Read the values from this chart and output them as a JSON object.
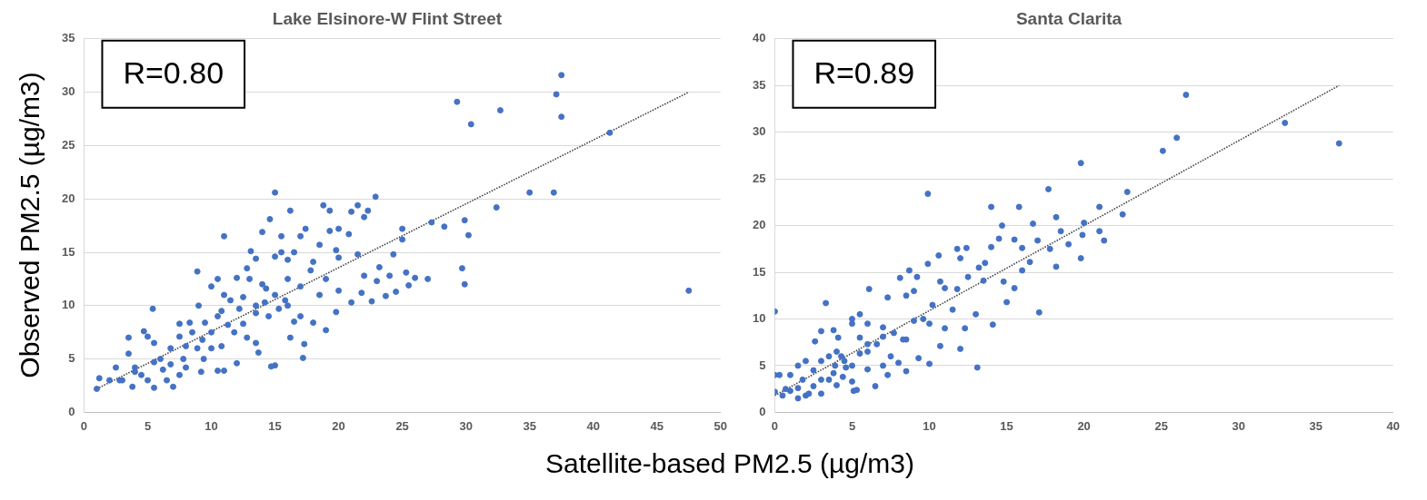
{
  "chart_data": [
    {
      "type": "scatter",
      "title": "Lake Elsinore-W Flint Street",
      "ylabel": "Observed PM2.5 (µg/m3)",
      "annotations": [
        "R=0.80"
      ],
      "xlim": [
        0,
        50
      ],
      "xticks": [
        0,
        5,
        10,
        15,
        20,
        25,
        30,
        35,
        40,
        45,
        50
      ],
      "ylim": [
        0,
        35
      ],
      "yticks": [
        0,
        5,
        10,
        15,
        20,
        25,
        30,
        35
      ],
      "grid": "y",
      "legend": false,
      "marker": "circle",
      "series": [
        {
          "color": "#4472c4",
          "x": [
            29.3,
            30.4,
            32.7,
            37.1,
            37.5,
            37.5,
            41.3,
            35,
            36.9,
            32.4,
            29.9,
            30.2,
            29.7,
            29.9,
            47.5,
            27.3,
            28.3,
            27,
            25,
            25,
            25.3,
            26,
            25.5,
            24.5,
            23.7,
            24.3,
            22.9,
            21.5,
            21,
            22,
            22.3,
            20.8,
            21.5,
            22.6,
            21.8,
            23.2,
            23,
            18.8,
            19.3,
            17.4,
            16.2,
            15,
            14.6,
            14,
            13.1,
            11,
            8.9,
            5.4,
            15.5,
            16.5,
            18.5,
            19.8,
            20,
            17.8,
            19,
            20,
            18.5,
            17,
            16,
            15,
            14.3,
            13,
            12,
            11,
            10,
            9,
            9.5,
            10.8,
            12.2,
            13.5,
            14.5,
            15.8,
            16.5,
            16.2,
            17.3,
            17.2,
            15,
            14.7,
            13.7,
            12.8,
            11.8,
            10.8,
            10.5,
            11,
            12,
            9.4,
            8.9,
            8,
            7.5,
            6.8,
            6,
            6.8,
            7.5,
            7,
            6.5,
            5.5,
            5,
            4.5,
            4,
            3.8,
            3,
            2.5,
            2,
            1.2,
            1,
            3.5,
            3.5,
            4.7,
            5,
            5.5,
            6.2,
            7.8,
            8.3,
            7.5,
            8.5,
            9.3,
            10,
            10.5,
            11.5,
            12.5,
            13.5,
            14.2,
            15,
            16,
            17,
            18,
            19,
            19.8,
            21,
            15.3,
            12.5,
            10,
            8,
            9.2,
            4,
            5.5,
            2.8,
            13.5,
            11.3,
            14,
            17,
            13.5,
            12.8,
            10.5,
            16,
            18,
            20,
            15.5,
            19.3,
            22,
            24
          ],
          "values": [
            29.1,
            27,
            28.3,
            29.8,
            31.6,
            27.7,
            26.2,
            20.6,
            20.6,
            19.2,
            18,
            16.6,
            13.5,
            12,
            11.4,
            17.8,
            17.4,
            12.5,
            17.2,
            16.2,
            13.1,
            12.6,
            11.9,
            11.3,
            10.9,
            14.8,
            20.2,
            19.4,
            18.8,
            18.3,
            18.9,
            16.7,
            14.8,
            10.4,
            11.2,
            13.6,
            12.3,
            19.4,
            18.9,
            17.2,
            18.9,
            20.6,
            18.1,
            16.9,
            15.1,
            16.5,
            13.2,
            9.7,
            15,
            15,
            15.7,
            15.2,
            14.5,
            13.3,
            12.5,
            11.4,
            11,
            11.8,
            12.5,
            14.6,
            11.6,
            12.5,
            12.6,
            11,
            11.8,
            10,
            8.4,
            9.5,
            9.7,
            10,
            9,
            10.5,
            8.5,
            7,
            6.4,
            5.1,
            4.4,
            4.3,
            5.6,
            7,
            7.5,
            6.2,
            3.9,
            3.9,
            4.6,
            5,
            6,
            6.2,
            7.1,
            6,
            5,
            4.5,
            3.5,
            2.4,
            3,
            2.3,
            3,
            3.5,
            4.2,
            2.4,
            3,
            4.2,
            3,
            3.2,
            2.2,
            7,
            5.5,
            7.6,
            7.1,
            6.5,
            4,
            5,
            8.4,
            8.3,
            7.5,
            6.8,
            7.5,
            9,
            10.5,
            10.8,
            9.3,
            10.3,
            11,
            10,
            9,
            8.4,
            7.7,
            9.4,
            10.3,
            9.7,
            8.3,
            6,
            4.2,
            3.8,
            3.8,
            4.7,
            3,
            6.5,
            8.2,
            12,
            16.5,
            14.4,
            13.5,
            12.5,
            14.3,
            14.1,
            17.2,
            16.5,
            17,
            12.8,
            12.8
          ]
        },
        {
          "type": "line",
          "color": "#404040",
          "line_style": "dotted",
          "marker": "none",
          "x": [
            1,
            47.5
          ],
          "values": [
            2.2,
            30
          ]
        }
      ]
    },
    {
      "type": "scatter",
      "title": "Santa Clarita",
      "xlabel": "Satellite-based PM2.5 (µg/m3)",
      "annotations": [
        "R=0.89"
      ],
      "xlim": [
        0,
        40
      ],
      "xticks": [
        0,
        5,
        10,
        15,
        20,
        25,
        30,
        35,
        40
      ],
      "ylim": [
        0,
        40
      ],
      "yticks": [
        0,
        5,
        10,
        15,
        20,
        25,
        30,
        35,
        40
      ],
      "grid": "y",
      "legend": false,
      "marker": "circle",
      "series": [
        {
          "color": "#4472c4",
          "x": [
            0,
            3.3,
            9.9,
            13.1,
            19.8,
            17.7,
            14,
            15.8,
            14.7,
            16.7,
            18.2,
            20,
            21,
            22.8,
            22.5,
            21,
            21.3,
            19.9,
            19,
            19.8,
            18.2,
            17.8,
            17,
            16,
            15.5,
            14.5,
            14,
            13.6,
            13.2,
            12.4,
            11.8,
            12,
            10.6,
            9.9,
            8.7,
            8.1,
            7.3,
            6.1,
            5.5,
            5,
            4.1,
            3,
            2.6,
            3.8,
            5,
            6,
            7,
            8.5,
            9,
            10.2,
            11,
            11.8,
            12.5,
            13.5,
            14.8,
            15.5,
            16,
            16.5,
            17.1,
            15,
            14.1,
            13,
            12.3,
            11.5,
            11,
            12,
            10.7,
            10,
            9.3,
            8.5,
            8,
            7.3,
            6.5,
            6,
            5.3,
            5,
            4.4,
            4,
            3.5,
            3,
            2.5,
            2,
            1.5,
            1,
            0.5,
            0,
            0,
            0.3,
            1,
            1.5,
            2,
            2.5,
            3,
            3.5,
            4,
            4.5,
            5,
            5.5,
            6,
            6.6,
            7,
            7.7,
            8.3,
            9,
            9.6,
            10,
            8.5,
            7.5,
            7,
            6,
            5.5,
            4.6,
            3.8,
            3,
            1.5,
            2.2,
            4.3,
            5.1,
            3.9,
            1.8,
            0.7,
            25.1,
            26,
            26.6,
            33,
            36.5,
            18.5,
            10.7,
            9.2
          ],
          "values": [
            10.8,
            11.7,
            23.4,
            4.8,
            26.7,
            23.9,
            22,
            22,
            20,
            20.2,
            20.9,
            20.3,
            22,
            23.6,
            21.2,
            19.4,
            18.4,
            19,
            18,
            16.5,
            15.6,
            17.5,
            18.4,
            17.6,
            18.5,
            18.6,
            17.7,
            16,
            15.5,
            17.6,
            17.5,
            16.5,
            16.8,
            15.9,
            15.2,
            14.4,
            12.3,
            13.2,
            10.5,
            10,
            8,
            8.7,
            7.6,
            8.8,
            9.5,
            9.5,
            9.1,
            12.5,
            13,
            11.5,
            13.3,
            13.2,
            14.5,
            14.1,
            14,
            13.3,
            15.2,
            16.1,
            10.7,
            11.8,
            9.4,
            10.5,
            9,
            11,
            9,
            6.8,
            7.1,
            5.2,
            5.8,
            4.4,
            5.3,
            4,
            2.8,
            4.6,
            2.4,
            3.3,
            3.8,
            2.9,
            3.5,
            2,
            2.8,
            1.8,
            1.5,
            2.3,
            1.8,
            2.2,
            4,
            4,
            4,
            5,
            5.5,
            4.5,
            5.5,
            6,
            6.5,
            5.5,
            5,
            6.3,
            7.3,
            7.3,
            8.1,
            8.5,
            7.8,
            9.8,
            10,
            9.5,
            7.8,
            6,
            5,
            6.5,
            8,
            4.8,
            4.2,
            3.5,
            2.6,
            2,
            6,
            2.3,
            5,
            3.5,
            2.5,
            28,
            29.4,
            34,
            31,
            28.8,
            19.4,
            14,
            14.5
          ]
        },
        {
          "type": "line",
          "color": "#404040",
          "line_style": "dotted",
          "marker": "none",
          "x": [
            0,
            36.5
          ],
          "values": [
            1.8,
            35
          ]
        }
      ]
    }
  ]
}
